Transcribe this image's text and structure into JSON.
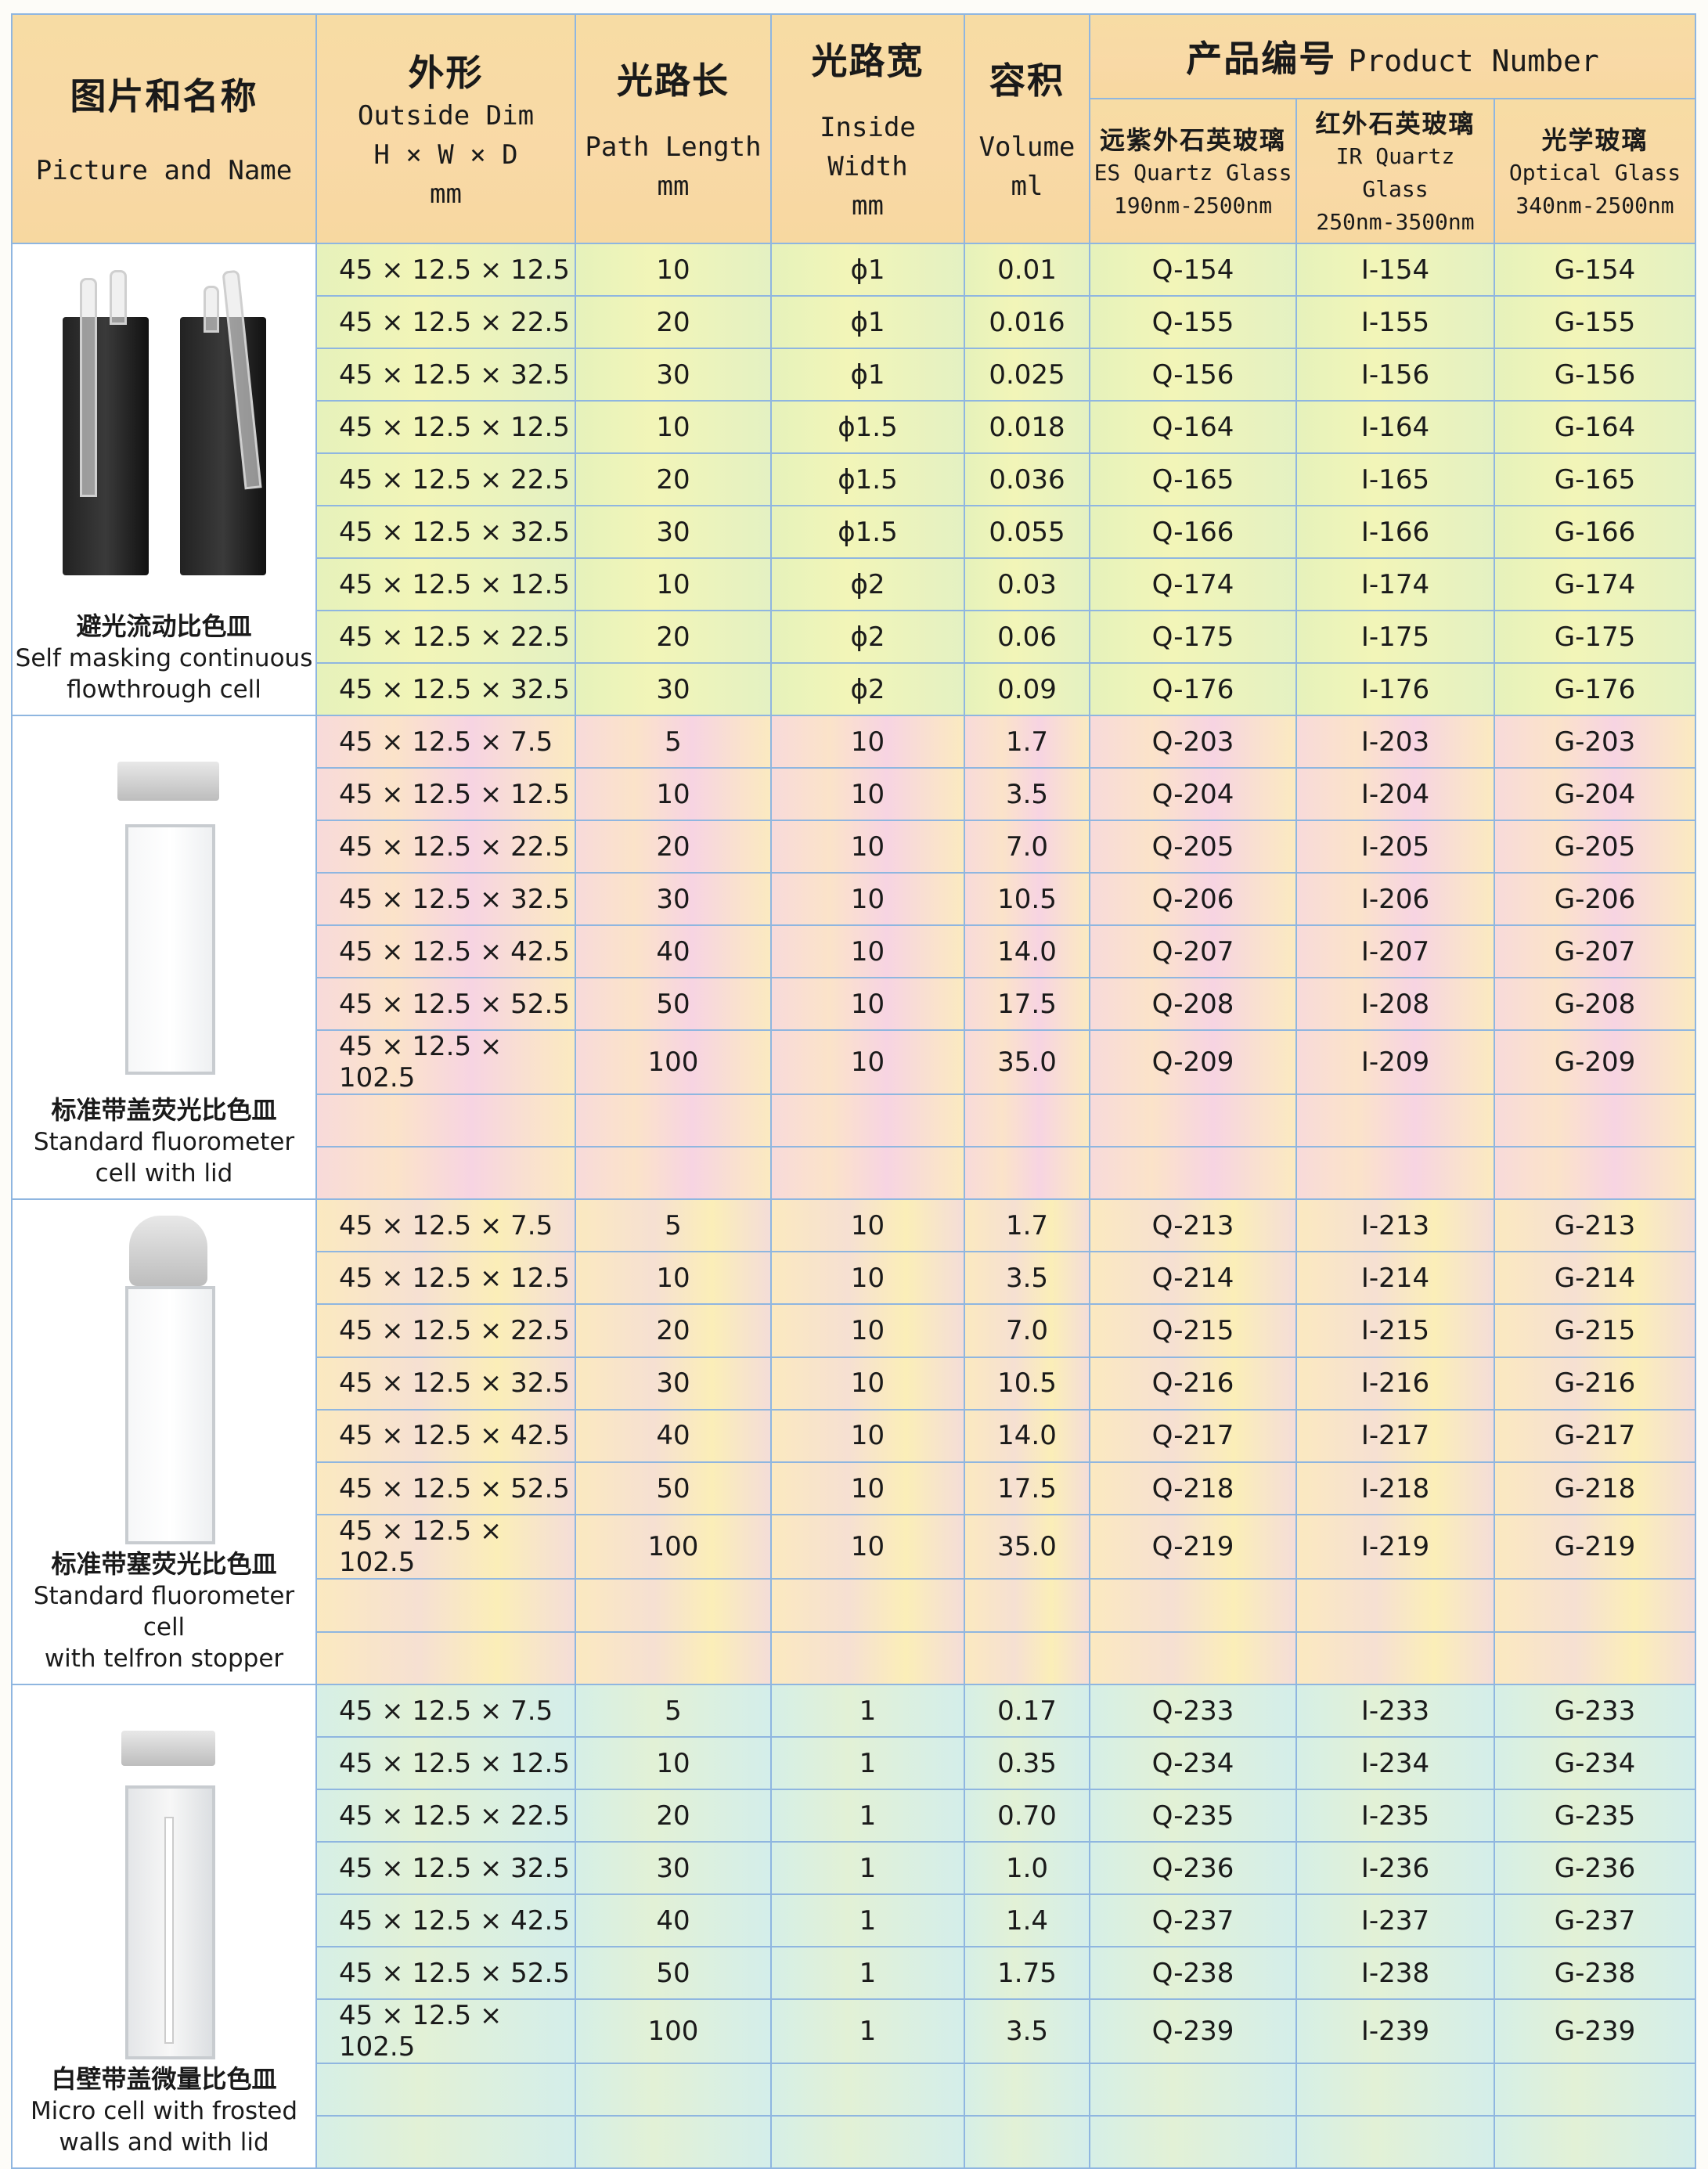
{
  "header": {
    "col1": {
      "zh": "图片和名称",
      "en": "Picture and Name"
    },
    "col2": {
      "zh": "外形",
      "en": "Outside Dim",
      "en2": "H × W × D",
      "unit": "mm"
    },
    "col3": {
      "zh": "光路长",
      "en": "Path Length",
      "unit": "mm"
    },
    "col4": {
      "zh": "光路宽",
      "en": "Inside Width",
      "unit": "mm"
    },
    "col5": {
      "zh": "容积",
      "en": "Volume",
      "unit": "ml"
    },
    "product": {
      "zh": "产品编号",
      "en": "Product Number"
    },
    "sub": [
      {
        "zh": "远紫外石英玻璃",
        "en": "ES Quartz Glass",
        "range": "190nm-2500nm"
      },
      {
        "zh": "红外石英玻璃",
        "en": "IR Quartz Glass",
        "range": "250nm-3500nm"
      },
      {
        "zh": "光学玻璃",
        "en": "Optical Glass",
        "range": "340nm-2500nm"
      }
    ]
  },
  "sections": [
    {
      "name_zh": "避光流动比色皿",
      "name_en": [
        "Self masking continuous",
        "flowthrough cell"
      ],
      "rows": [
        [
          "45 × 12.5 × 12.5",
          "10",
          "ϕ1",
          "0.01",
          "Q-154",
          "I-154",
          "G-154"
        ],
        [
          "45 × 12.5 × 22.5",
          "20",
          "ϕ1",
          "0.016",
          "Q-155",
          "I-155",
          "G-155"
        ],
        [
          "45 × 12.5 × 32.5",
          "30",
          "ϕ1",
          "0.025",
          "Q-156",
          "I-156",
          "G-156"
        ],
        [
          "45 × 12.5 × 12.5",
          "10",
          "ϕ1.5",
          "0.018",
          "Q-164",
          "I-164",
          "G-164"
        ],
        [
          "45 × 12.5 × 22.5",
          "20",
          "ϕ1.5",
          "0.036",
          "Q-165",
          "I-165",
          "G-165"
        ],
        [
          "45 × 12.5 × 32.5",
          "30",
          "ϕ1.5",
          "0.055",
          "Q-166",
          "I-166",
          "G-166"
        ],
        [
          "45 × 12.5 × 12.5",
          "10",
          "ϕ2",
          "0.03",
          "Q-174",
          "I-174",
          "G-174"
        ],
        [
          "45 × 12.5 × 22.5",
          "20",
          "ϕ2",
          "0.06",
          "Q-175",
          "I-175",
          "G-175"
        ],
        [
          "45 × 12.5 × 32.5",
          "30",
          "ϕ2",
          "0.09",
          "Q-176",
          "I-176",
          "G-176"
        ]
      ]
    },
    {
      "name_zh": "标准带盖荧光比色皿",
      "name_en": [
        "Standard fluorometer",
        "cell with lid"
      ],
      "rows": [
        [
          "45 × 12.5 × 7.5",
          "5",
          "10",
          "1.7",
          "Q-203",
          "I-203",
          "G-203"
        ],
        [
          "45 × 12.5 × 12.5",
          "10",
          "10",
          "3.5",
          "Q-204",
          "I-204",
          "G-204"
        ],
        [
          "45 × 12.5 × 22.5",
          "20",
          "10",
          "7.0",
          "Q-205",
          "I-205",
          "G-205"
        ],
        [
          "45 × 12.5 × 32.5",
          "30",
          "10",
          "10.5",
          "Q-206",
          "I-206",
          "G-206"
        ],
        [
          "45 × 12.5 × 42.5",
          "40",
          "10",
          "14.0",
          "Q-207",
          "I-207",
          "G-207"
        ],
        [
          "45 × 12.5 × 52.5",
          "50",
          "10",
          "17.5",
          "Q-208",
          "I-208",
          "G-208"
        ],
        [
          "45 × 12.5 × 102.5",
          "100",
          "10",
          "35.0",
          "Q-209",
          "I-209",
          "G-209"
        ],
        [
          "",
          "",
          "",
          "",
          "",
          "",
          ""
        ],
        [
          "",
          "",
          "",
          "",
          "",
          "",
          ""
        ]
      ]
    },
    {
      "name_zh": "标准带塞荧光比色皿",
      "name_en": [
        "Standard fluorometer cell",
        "with telfron stopper"
      ],
      "rows": [
        [
          "45 × 12.5 × 7.5",
          "5",
          "10",
          "1.7",
          "Q-213",
          "I-213",
          "G-213"
        ],
        [
          "45 × 12.5 × 12.5",
          "10",
          "10",
          "3.5",
          "Q-214",
          "I-214",
          "G-214"
        ],
        [
          "45 × 12.5 × 22.5",
          "20",
          "10",
          "7.0",
          "Q-215",
          "I-215",
          "G-215"
        ],
        [
          "45 × 12.5 × 32.5",
          "30",
          "10",
          "10.5",
          "Q-216",
          "I-216",
          "G-216"
        ],
        [
          "45 × 12.5 × 42.5",
          "40",
          "10",
          "14.0",
          "Q-217",
          "I-217",
          "G-217"
        ],
        [
          "45 × 12.5 × 52.5",
          "50",
          "10",
          "17.5",
          "Q-218",
          "I-218",
          "G-218"
        ],
        [
          "45 × 12.5 × 102.5",
          "100",
          "10",
          "35.0",
          "Q-219",
          "I-219",
          "G-219"
        ],
        [
          "",
          "",
          "",
          "",
          "",
          "",
          ""
        ],
        [
          "",
          "",
          "",
          "",
          "",
          "",
          ""
        ]
      ]
    },
    {
      "name_zh": "白壁带盖微量比色皿",
      "name_en": [
        "Micro cell with frosted",
        "walls and with lid"
      ],
      "rows": [
        [
          "45 × 12.5 × 7.5",
          "5",
          "1",
          "0.17",
          "Q-233",
          "I-233",
          "G-233"
        ],
        [
          "45 × 12.5 × 12.5",
          "10",
          "1",
          "0.35",
          "Q-234",
          "I-234",
          "G-234"
        ],
        [
          "45 × 12.5 × 22.5",
          "20",
          "1",
          "0.70",
          "Q-235",
          "I-235",
          "G-235"
        ],
        [
          "45 × 12.5 × 32.5",
          "30",
          "1",
          "1.0",
          "Q-236",
          "I-236",
          "G-236"
        ],
        [
          "45 × 12.5 × 42.5",
          "40",
          "1",
          "1.4",
          "Q-237",
          "I-237",
          "G-237"
        ],
        [
          "45 × 12.5 × 52.5",
          "50",
          "1",
          "1.75",
          "Q-238",
          "I-238",
          "G-238"
        ],
        [
          "45 × 12.5 × 102.5",
          "100",
          "1",
          "3.5",
          "Q-239",
          "I-239",
          "G-239"
        ],
        [
          "",
          "",
          "",
          "",
          "",
          "",
          ""
        ],
        [
          "",
          "",
          "",
          "",
          "",
          "",
          ""
        ]
      ]
    }
  ]
}
